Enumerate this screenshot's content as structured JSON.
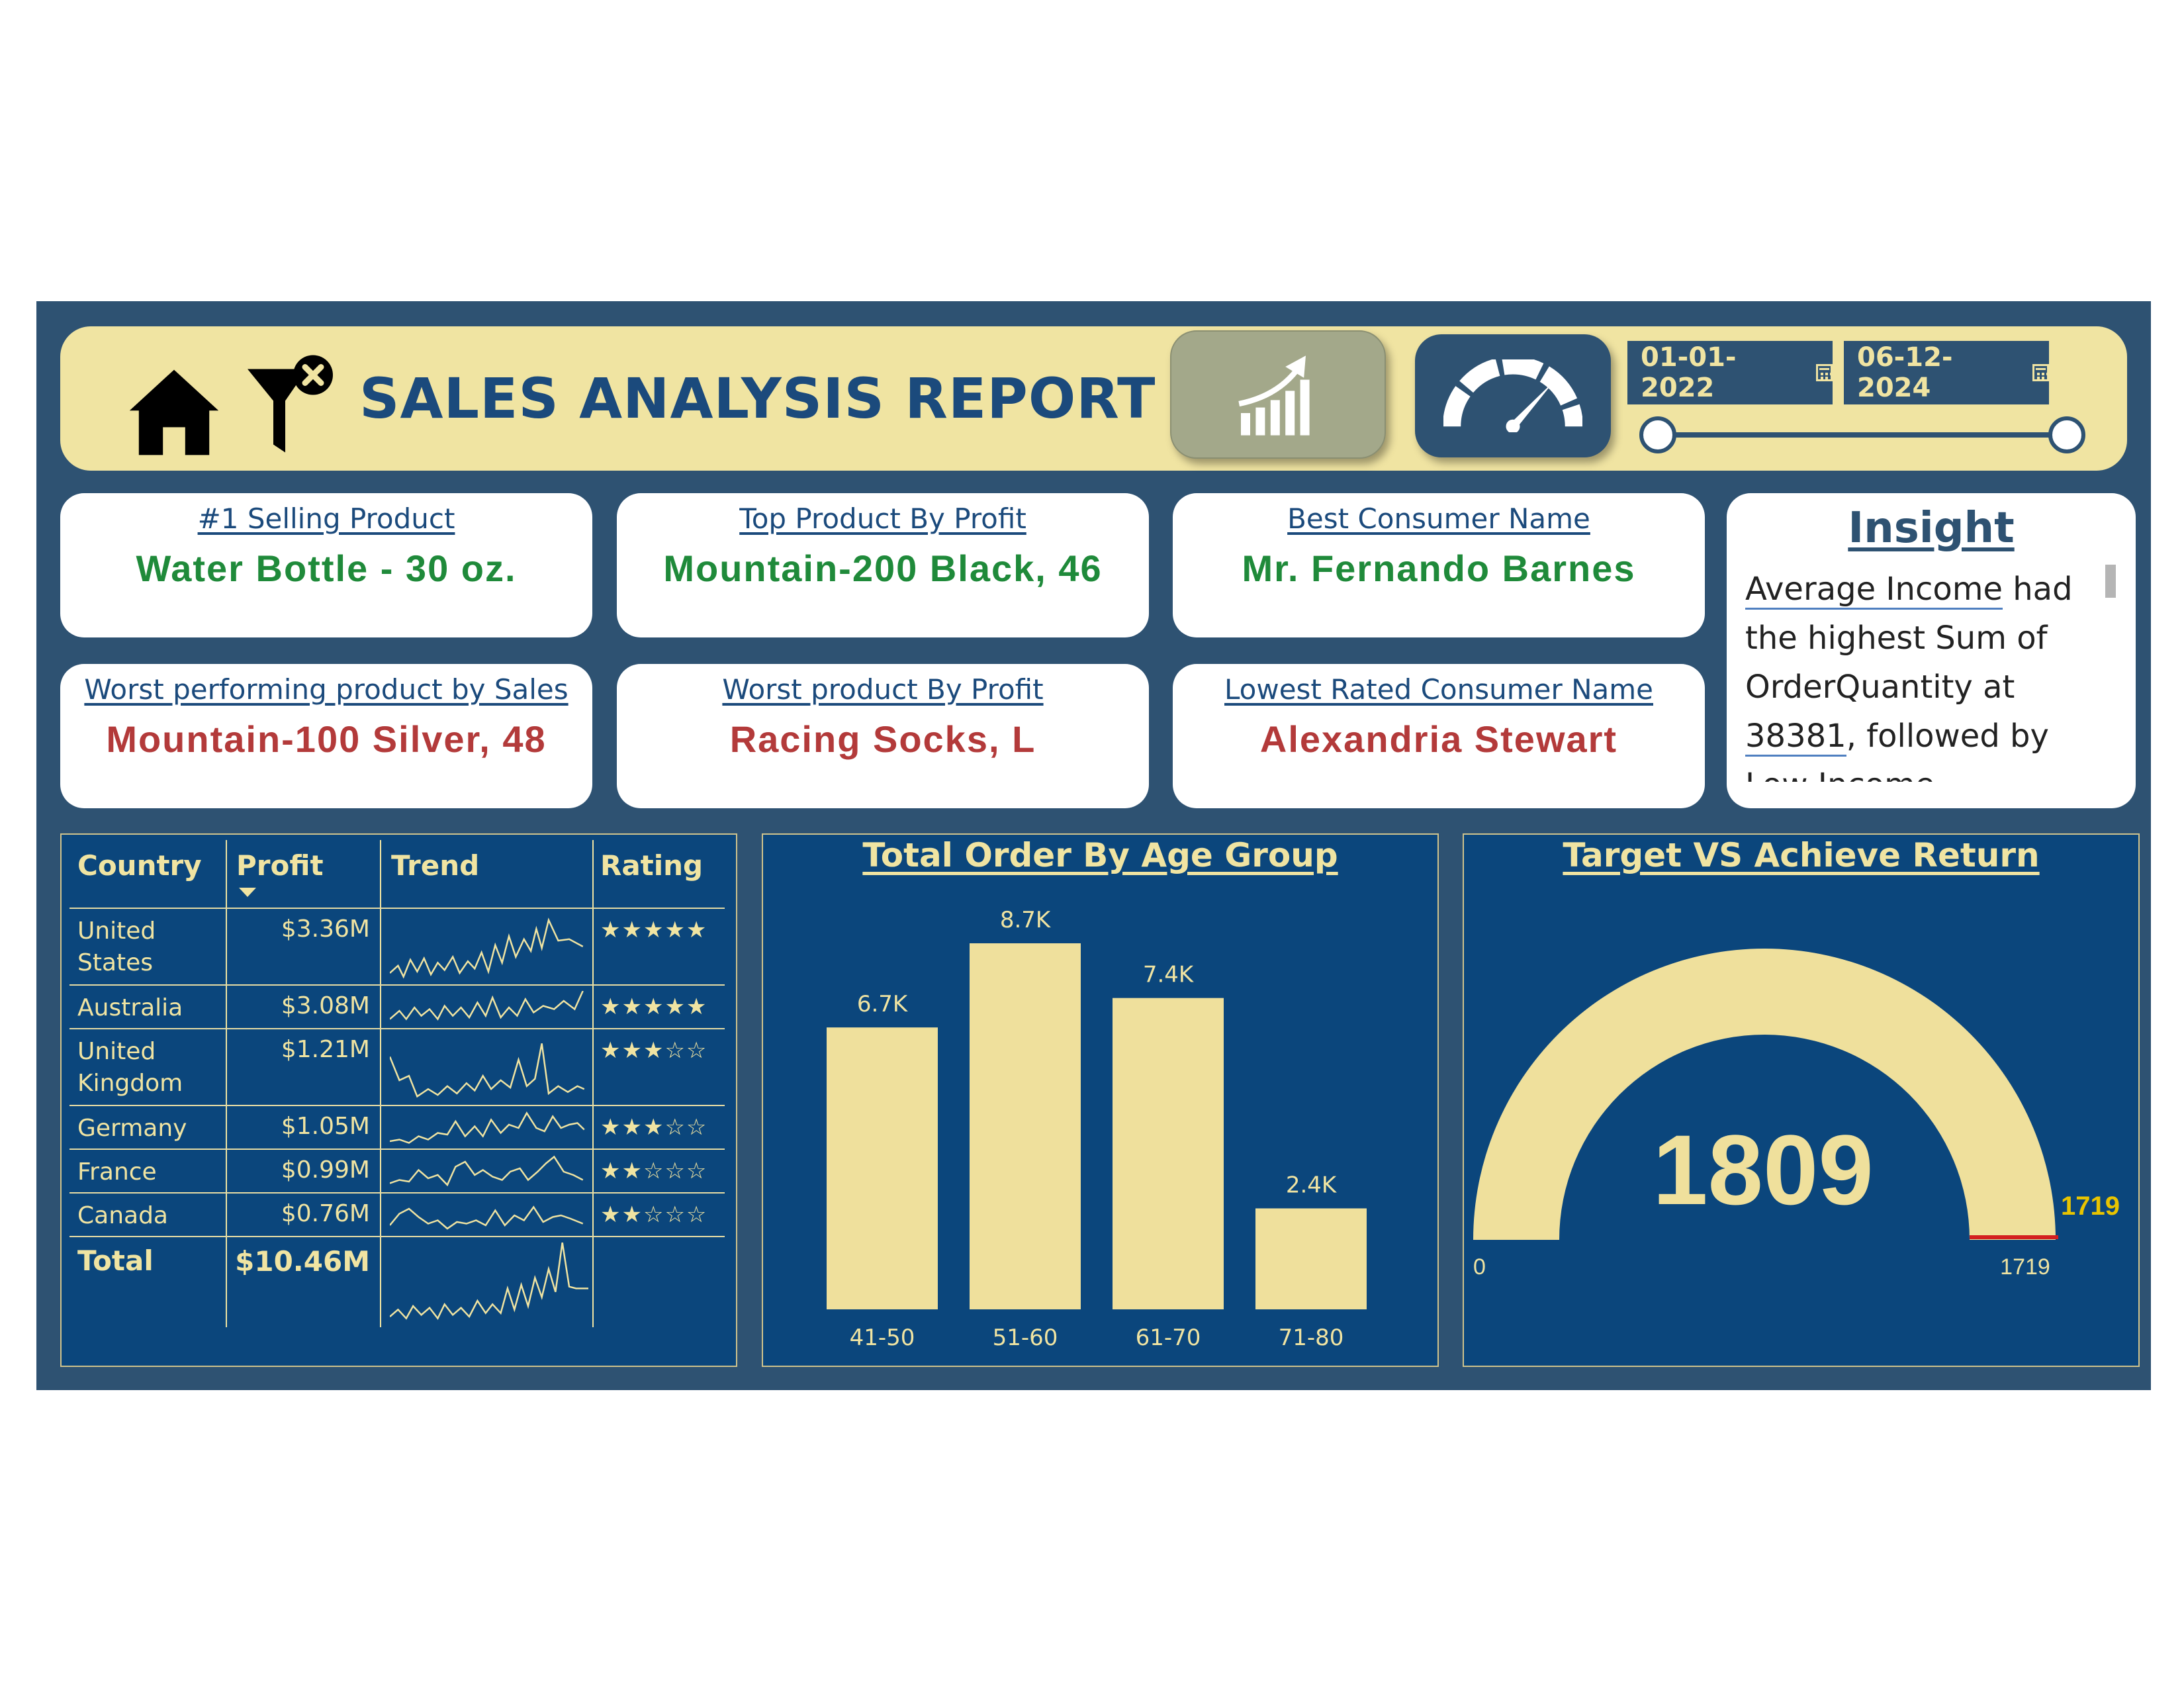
{
  "header": {
    "title": "SALES ANALYSIS REPORT",
    "start_date": "01-01-2022",
    "end_date": "06-12-2024"
  },
  "kpis": {
    "top_selling_label": "#1 Selling Product",
    "top_selling_value": "Water Bottle - 30 oz.",
    "top_profit_label": "Top Product By Profit",
    "top_profit_value": "Mountain-200 Black, 46",
    "best_consumer_label": "Best Consumer Name",
    "best_consumer_value": "Mr. Fernando Barnes",
    "worst_sales_label": "Worst performing product by Sales",
    "worst_sales_value": "Mountain-100 Silver, 48",
    "worst_profit_label": "Worst product By Profit",
    "worst_profit_value": "Racing Socks, L",
    "lowest_consumer_label": "Lowest Rated Consumer Name",
    "lowest_consumer_value": "Alexandria Stewart"
  },
  "insight": {
    "title": "Insight",
    "p1": "Average Income",
    "p2": " had the highest Sum of OrderQuantity at ",
    "p3": "38381",
    "p4": ", followed by Low Income"
  },
  "table": {
    "headers": {
      "country": "Country",
      "profit": "Profit",
      "trend": "Trend",
      "rating": "Rating"
    },
    "rows": [
      {
        "country": "United States",
        "profit": "$3.36M",
        "rating": "★★★★★"
      },
      {
        "country": "Australia",
        "profit": "$3.08M",
        "rating": "★★★★★"
      },
      {
        "country": "United Kingdom",
        "profit": "$1.21M",
        "rating": "★★★☆☆"
      },
      {
        "country": "Germany",
        "profit": "$1.05M",
        "rating": "★★★☆☆"
      },
      {
        "country": "France",
        "profit": "$0.99M",
        "rating": "★★☆☆☆"
      },
      {
        "country": "Canada",
        "profit": "$0.76M",
        "rating": "★★☆☆☆"
      }
    ],
    "total": {
      "label": "Total",
      "profit": "$10.46M"
    }
  },
  "chart_data": [
    {
      "type": "bar",
      "title": "Total Order By Age Group",
      "categories": [
        "41-50",
        "51-60",
        "61-70",
        "71-80"
      ],
      "values": [
        6700,
        8700,
        7400,
        2400
      ],
      "data_labels": [
        "6.7K",
        "8.7K",
        "7.4K",
        "2.4K"
      ],
      "ylim": [
        0,
        8700
      ],
      "color": "#efe09c"
    },
    {
      "type": "gauge",
      "title": "Target VS Achieve Return",
      "value": 1809,
      "min": 0,
      "max": 1719,
      "target": 1719,
      "value_label": "1809",
      "min_label": "0",
      "max_label": "1719",
      "target_label": "1719"
    }
  ],
  "colors": {
    "background": "#2e5272",
    "panel": "#0b467c",
    "accent": "#f0e4a2",
    "title": "#1b4a7c",
    "good": "#1f8a3a",
    "bad": "#b33a3a"
  }
}
